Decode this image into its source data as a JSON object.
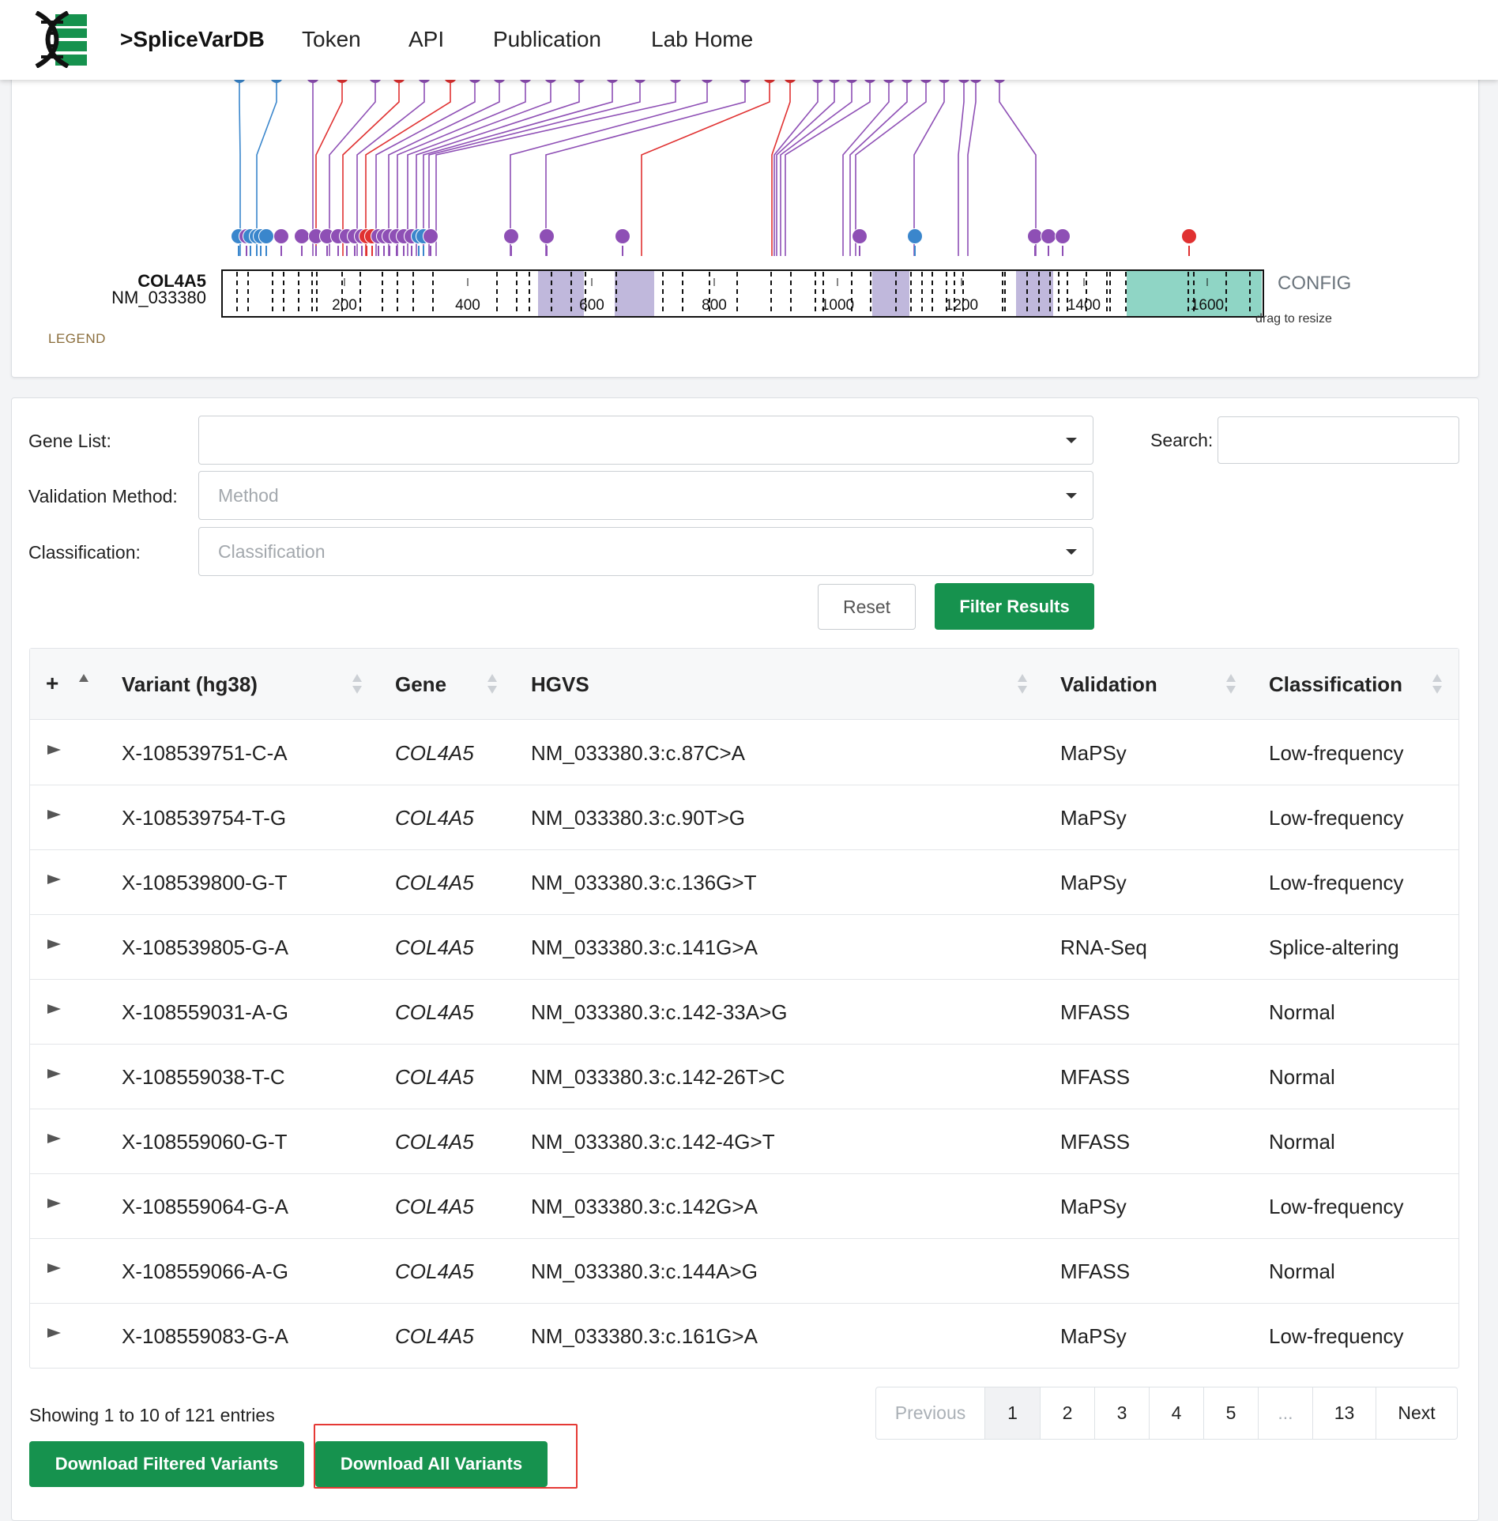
{
  "navbar": {
    "brand": ">SpliceVarDB",
    "links": [
      "Token",
      "API",
      "Publication",
      "Lab Home"
    ],
    "logo_icon": "dna-helix-icon"
  },
  "plot": {
    "gene": "COL4A5",
    "transcript": "NM_033380",
    "ticks": [
      "200",
      "400",
      "600",
      "800",
      "1000",
      "1200",
      "1400",
      "1600"
    ],
    "config_label": "CONFIG",
    "drag_hint": "drag to resize",
    "legend_label": "LEGEND",
    "colors": {
      "purple": "#8e4fb5",
      "blue": "#3a86cc",
      "red": "#e03131",
      "domain": "#c0b8dc",
      "teal": "#8fd5c5"
    }
  },
  "filters": {
    "gene_list_label": "Gene List:",
    "gene_list_value": "",
    "validation_label": "Validation Method:",
    "validation_placeholder": "Method",
    "classification_label": "Classification:",
    "classification_placeholder": "Classification",
    "search_label": "Search:",
    "search_value": "",
    "reset_label": "Reset",
    "filter_label": "Filter Results"
  },
  "table": {
    "expand_all": "+",
    "headers": {
      "variant": "Variant (hg38)",
      "gene": "Gene",
      "hgvs": "HGVS",
      "validation": "Validation",
      "classification": "Classification"
    },
    "rows": [
      {
        "variant": "X-108539751-C-A",
        "gene": "COL4A5",
        "hgvs": "NM_033380.3:c.87C>A",
        "validation": "MaPSy",
        "classification": "Low-frequency"
      },
      {
        "variant": "X-108539754-T-G",
        "gene": "COL4A5",
        "hgvs": "NM_033380.3:c.90T>G",
        "validation": "MaPSy",
        "classification": "Low-frequency"
      },
      {
        "variant": "X-108539800-G-T",
        "gene": "COL4A5",
        "hgvs": "NM_033380.3:c.136G>T",
        "validation": "MaPSy",
        "classification": "Low-frequency"
      },
      {
        "variant": "X-108539805-G-A",
        "gene": "COL4A5",
        "hgvs": "NM_033380.3:c.141G>A",
        "validation": "RNA-Seq",
        "classification": "Splice-altering"
      },
      {
        "variant": "X-108559031-A-G",
        "gene": "COL4A5",
        "hgvs": "NM_033380.3:c.142-33A>G",
        "validation": "MFASS",
        "classification": "Normal"
      },
      {
        "variant": "X-108559038-T-C",
        "gene": "COL4A5",
        "hgvs": "NM_033380.3:c.142-26T>C",
        "validation": "MFASS",
        "classification": "Normal"
      },
      {
        "variant": "X-108559060-G-T",
        "gene": "COL4A5",
        "hgvs": "NM_033380.3:c.142-4G>T",
        "validation": "MFASS",
        "classification": "Normal"
      },
      {
        "variant": "X-108559064-G-A",
        "gene": "COL4A5",
        "hgvs": "NM_033380.3:c.142G>A",
        "validation": "MaPSy",
        "classification": "Low-frequency"
      },
      {
        "variant": "X-108559066-A-G",
        "gene": "COL4A5",
        "hgvs": "NM_033380.3:c.144A>G",
        "validation": "MFASS",
        "classification": "Normal"
      },
      {
        "variant": "X-108559083-G-A",
        "gene": "COL4A5",
        "hgvs": "NM_033380.3:c.161G>A",
        "validation": "MaPSy",
        "classification": "Low-frequency"
      }
    ]
  },
  "footer": {
    "info": "Showing 1 to 10 of 121 entries",
    "pages": [
      "Previous",
      "1",
      "2",
      "3",
      "4",
      "5",
      "...",
      "13",
      "Next"
    ],
    "active_page": "1",
    "download_filtered": "Download Filtered Variants",
    "download_all": "Download All Variants"
  }
}
